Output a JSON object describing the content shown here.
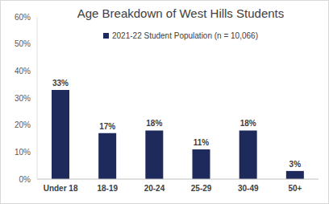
{
  "chart_data": {
    "type": "bar",
    "title": "Age Breakdown of West Hills Students",
    "categories": [
      "Under 18",
      "18-19",
      "20-24",
      "25-29",
      "30-49",
      "50+"
    ],
    "series": [
      {
        "name": "2021-22 Student Population (n = 10,066)",
        "color": "#1f2a5c",
        "values": [
          33,
          17,
          18,
          11,
          18,
          3
        ],
        "value_labels": [
          "33%",
          "17%",
          "18%",
          "11%",
          "18%",
          "3%"
        ]
      }
    ],
    "ylim": [
      0,
      60
    ],
    "yticks": [
      {
        "value": 0,
        "label": "0%"
      },
      {
        "value": 10,
        "label": "10%"
      },
      {
        "value": 20,
        "label": "20%"
      },
      {
        "value": 30,
        "label": "30%"
      },
      {
        "value": 40,
        "label": "40%"
      },
      {
        "value": 50,
        "label": "50%"
      },
      {
        "value": 60,
        "label": "60%"
      }
    ],
    "grid": false,
    "legend": "top",
    "data_labels": true
  }
}
